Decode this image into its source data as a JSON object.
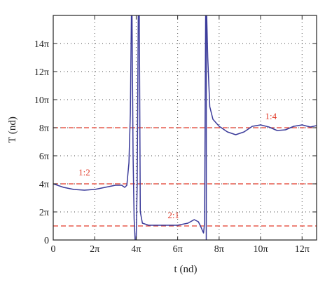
{
  "chart_data": {
    "type": "line",
    "title": "",
    "xlabel": "t (nd)",
    "ylabel": "T (nd)",
    "xlim": [
      0,
      12.7
    ],
    "ylim": [
      0,
      16
    ],
    "grid": true,
    "xticks": [
      {
        "value": 0,
        "label": "0"
      },
      {
        "value": 2,
        "label": "2π"
      },
      {
        "value": 4,
        "label": "4π"
      },
      {
        "value": 6,
        "label": "6π"
      },
      {
        "value": 8,
        "label": "8π"
      },
      {
        "value": 10,
        "label": "10π"
      },
      {
        "value": 12,
        "label": "12π"
      }
    ],
    "yticks": [
      {
        "value": 0,
        "label": "0"
      },
      {
        "value": 2,
        "label": "2π"
      },
      {
        "value": 4,
        "label": "4π"
      },
      {
        "value": 6,
        "label": "6π"
      },
      {
        "value": 8,
        "label": "8π"
      },
      {
        "value": 10,
        "label": "10π"
      },
      {
        "value": 12,
        "label": "12π"
      },
      {
        "value": 14,
        "label": "14π"
      }
    ],
    "units_note_axis": "tick labels in multiples of π",
    "series": [
      {
        "color": "#3b3b9a",
        "segments": [
          [
            [
              0,
              4.0
            ],
            [
              0.5,
              3.75
            ],
            [
              1.0,
              3.6
            ],
            [
              1.5,
              3.55
            ],
            [
              2.0,
              3.6
            ],
            [
              2.5,
              3.75
            ],
            [
              3.0,
              3.9
            ],
            [
              3.3,
              3.9
            ],
            [
              3.45,
              3.75
            ],
            [
              3.55,
              3.9
            ],
            [
              3.65,
              5.5
            ],
            [
              3.72,
              9
            ],
            [
              3.77,
              16
            ]
          ],
          [
            [
              3.8,
              16
            ],
            [
              3.85,
              6
            ],
            [
              3.9,
              1.5
            ],
            [
              3.95,
              0
            ]
          ],
          [
            [
              4.0,
              0
            ],
            [
              4.05,
              4
            ],
            [
              4.1,
              16
            ]
          ],
          [
            [
              4.15,
              16
            ],
            [
              4.2,
              2
            ],
            [
              4.3,
              1.2
            ],
            [
              4.6,
              1.05
            ],
            [
              5.0,
              1.05
            ],
            [
              5.5,
              1.05
            ],
            [
              6.0,
              1.05
            ],
            [
              6.5,
              1.2
            ],
            [
              6.8,
              1.45
            ],
            [
              7.0,
              1.3
            ],
            [
              7.1,
              1.0
            ],
            [
              7.2,
              0.65
            ],
            [
              7.25,
              0.5
            ],
            [
              7.3,
              1.2
            ],
            [
              7.35,
              16
            ]
          ],
          [
            [
              7.4,
              16
            ],
            [
              7.45,
              13
            ],
            [
              7.55,
              9.5
            ],
            [
              7.7,
              8.6
            ],
            [
              8.0,
              8.1
            ],
            [
              8.4,
              7.7
            ],
            [
              8.8,
              7.5
            ],
            [
              9.2,
              7.7
            ],
            [
              9.6,
              8.1
            ],
            [
              10.0,
              8.2
            ],
            [
              10.4,
              8.05
            ],
            [
              10.8,
              7.8
            ],
            [
              11.2,
              7.85
            ],
            [
              11.6,
              8.1
            ],
            [
              12.0,
              8.2
            ],
            [
              12.4,
              8.05
            ],
            [
              12.7,
              8.15
            ]
          ]
        ]
      }
    ],
    "reference_lines": [
      {
        "y": 8,
        "color": "#e23b2a",
        "label": "1:4",
        "label_x": 10.5,
        "label_y": 8.6
      },
      {
        "y": 4,
        "color": "#e23b2a",
        "label": "1:2",
        "label_x": 1.5,
        "label_y": 4.6
      },
      {
        "y": 1,
        "color": "#e23b2a",
        "label": "2:1",
        "label_x": 5.8,
        "label_y": 1.55
      }
    ],
    "vertical_lines": [
      {
        "x": 7.38,
        "color": "#3b3b9a"
      }
    ]
  }
}
